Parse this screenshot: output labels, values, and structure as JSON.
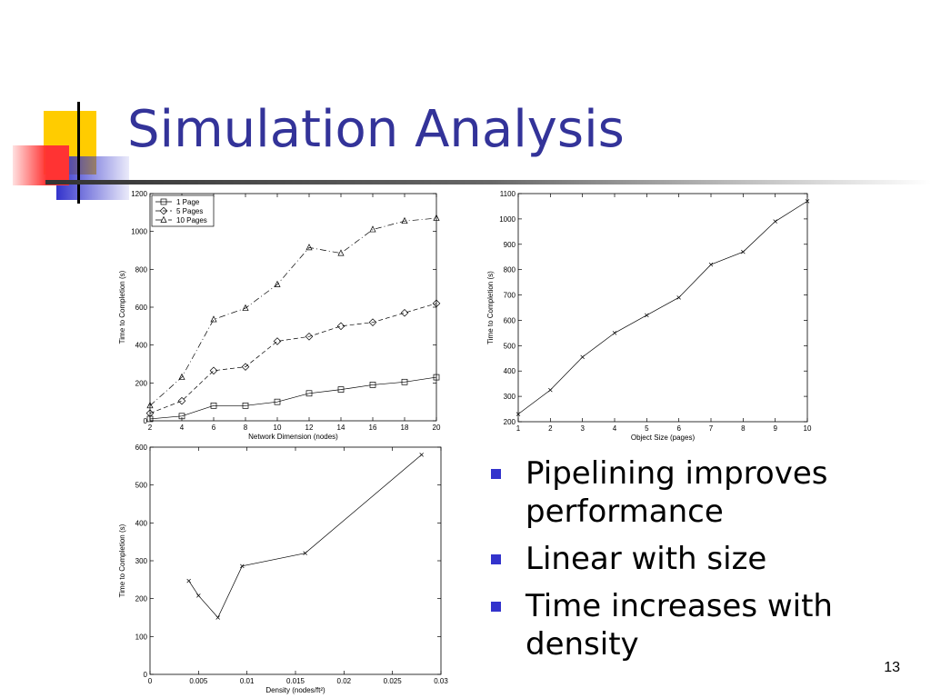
{
  "slide": {
    "title": "Simulation Analysis",
    "page_number": "13",
    "bullets": [
      "Pipelining improves performance",
      "Linear with size",
      "Time increases with density"
    ],
    "colors": {
      "title": "#333399",
      "bullet": "#3333cc",
      "deco_yellow": "#ffcc00",
      "deco_red": "#ff3333",
      "deco_blue": "#3333cc"
    }
  },
  "chart_data": [
    {
      "type": "line",
      "xlabel": "Network Dimension (nodes)",
      "ylabel": "Time to Completion (s)",
      "xlim": [
        2,
        20
      ],
      "ylim": [
        0,
        1200
      ],
      "xticks": [
        2,
        4,
        6,
        8,
        10,
        12,
        14,
        16,
        18,
        20
      ],
      "yticks": [
        0,
        200,
        400,
        600,
        800,
        1000,
        1200
      ],
      "legend_position": "top-left",
      "series": [
        {
          "name": "1 Page",
          "marker": "square",
          "dash": "solid",
          "x": [
            2,
            4,
            6,
            8,
            10,
            12,
            14,
            16,
            18,
            20
          ],
          "y": [
            10,
            25,
            80,
            80,
            100,
            145,
            165,
            190,
            205,
            230
          ]
        },
        {
          "name": "5 Pages",
          "marker": "diamond",
          "dash": "dashed",
          "x": [
            2,
            4,
            6,
            8,
            10,
            12,
            14,
            16,
            18,
            20
          ],
          "y": [
            40,
            105,
            265,
            285,
            420,
            445,
            500,
            520,
            570,
            620
          ]
        },
        {
          "name": "10 Pages",
          "marker": "triangle",
          "dash": "dashdot",
          "x": [
            2,
            4,
            6,
            8,
            10,
            12,
            14,
            16,
            18,
            20
          ],
          "y": [
            80,
            230,
            535,
            595,
            720,
            915,
            885,
            1010,
            1055,
            1070
          ]
        }
      ]
    },
    {
      "type": "line",
      "xlabel": "Object Size (pages)",
      "ylabel": "Time to Completion (s)",
      "xlim": [
        1,
        10
      ],
      "ylim": [
        200,
        1100
      ],
      "xticks": [
        1,
        2,
        3,
        4,
        5,
        6,
        7,
        8,
        9,
        10
      ],
      "yticks": [
        200,
        300,
        400,
        500,
        600,
        700,
        800,
        900,
        1000,
        1100
      ],
      "series": [
        {
          "marker": "x",
          "dash": "solid",
          "x": [
            1,
            2,
            3,
            4,
            5,
            6,
            7,
            8,
            9,
            10
          ],
          "y": [
            230,
            325,
            455,
            550,
            620,
            690,
            820,
            870,
            990,
            1070
          ]
        }
      ]
    },
    {
      "type": "line",
      "xlabel": "Density (nodes/ft²)",
      "ylabel": "Time to Completion (s)",
      "xlim": [
        0,
        0.03
      ],
      "ylim": [
        0,
        600
      ],
      "xticks": [
        0,
        0.005,
        0.01,
        0.015,
        0.02,
        0.025,
        0.03
      ],
      "xtick_labels": [
        "0",
        "0.005",
        "0.01",
        "0.015",
        "0.02",
        "0.025",
        "0.03"
      ],
      "yticks": [
        0,
        100,
        200,
        300,
        400,
        500,
        600
      ],
      "series": [
        {
          "marker": "x",
          "dash": "solid",
          "x": [
            0.004,
            0.005,
            0.007,
            0.0095,
            0.016,
            0.028
          ],
          "y": [
            247,
            208,
            150,
            286,
            320,
            580
          ]
        }
      ]
    }
  ]
}
